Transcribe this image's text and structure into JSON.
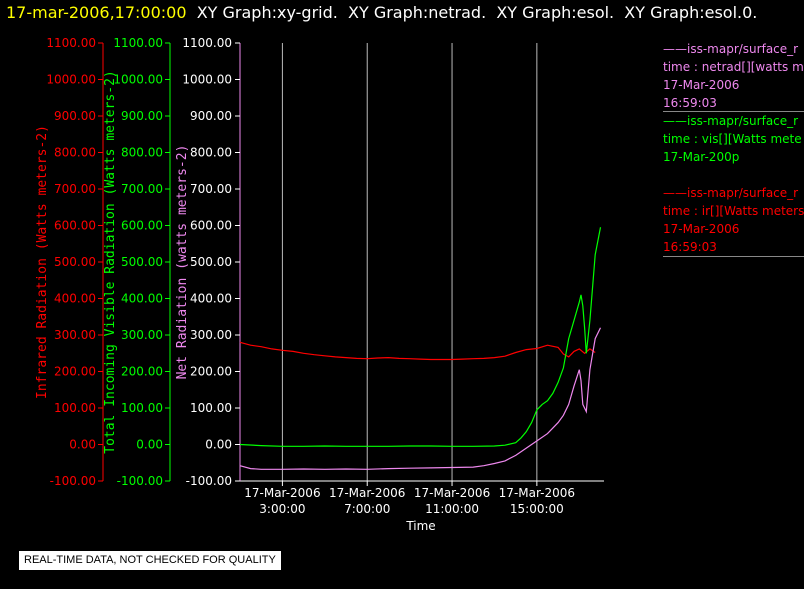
{
  "header": {
    "timestamp": "17-mar-2006,17:00:00",
    "titles": "XY Graph:xy-grid.  XY Graph:netrad.  XY Graph:esol.  XY Graph:esol.0."
  },
  "chart_data": {
    "type": "line",
    "xlabel": "Time",
    "x_ticks": [
      {
        "date": "17-Mar-2006",
        "time": "3:00:00"
      },
      {
        "date": "17-Mar-2006",
        "time": "7:00:00"
      },
      {
        "date": "17-Mar-2006",
        "time": "11:00:00"
      },
      {
        "date": "17-Mar-2006",
        "time": "15:00:00"
      }
    ],
    "y_axes": [
      {
        "label": "Infrared Radiation (Watts meters-2)",
        "color": "#ff0000"
      },
      {
        "label": "Total Incoming Visible Radiation (Watts meters-2)",
        "color": "#00ff00"
      },
      {
        "label": "Net Radiation (watts meters-2)",
        "color": "#ee88ee"
      }
    ],
    "y_ticks": [
      "1100.00",
      "1000.00",
      "900.00",
      "800.00",
      "700.00",
      "600.00",
      "500.00",
      "400.00",
      "300.00",
      "200.00",
      "100.00",
      "0.00",
      "-100.00"
    ],
    "ylim": [
      -100,
      1100
    ],
    "xlim": [
      "17-Mar-2006 01:00",
      "17-Mar-2006 18:10"
    ],
    "grid": true,
    "series": [
      {
        "name": "ir",
        "color": "#ff0000",
        "x": [
          "01:00",
          "01:30",
          "02:00",
          "02:30",
          "03:00",
          "03:30",
          "04:00",
          "04:30",
          "05:00",
          "05:30",
          "06:00",
          "06:30",
          "07:00",
          "07:30",
          "08:00",
          "08:30",
          "09:00",
          "09:30",
          "10:00",
          "10:30",
          "11:00",
          "11:30",
          "12:00",
          "12:30",
          "13:00",
          "13:30",
          "14:00",
          "14:30",
          "15:00",
          "15:30",
          "16:00",
          "16:15",
          "16:30",
          "16:45",
          "17:00",
          "17:15",
          "17:30",
          "17:45"
        ],
        "values": [
          280,
          272,
          268,
          262,
          258,
          255,
          250,
          246,
          243,
          240,
          238,
          236,
          235,
          237,
          238,
          236,
          235,
          234,
          233,
          233,
          233,
          234,
          235,
          236,
          238,
          242,
          252,
          260,
          263,
          272,
          266,
          248,
          240,
          255,
          262,
          250,
          262,
          252
        ]
      },
      {
        "name": "vis",
        "color": "#00ff00",
        "x": [
          "01:00",
          "02:00",
          "03:00",
          "04:00",
          "05:00",
          "06:00",
          "07:00",
          "08:00",
          "09:00",
          "10:00",
          "11:00",
          "12:00",
          "13:00",
          "13:30",
          "14:00",
          "14:15",
          "14:30",
          "14:45",
          "15:00",
          "15:15",
          "15:30",
          "15:45",
          "16:00",
          "16:15",
          "16:30",
          "16:45",
          "17:00",
          "17:05",
          "17:10",
          "17:15",
          "17:20",
          "17:30",
          "17:45",
          "18:00"
        ],
        "values": [
          0,
          -3,
          -5,
          -5,
          -4,
          -5,
          -5,
          -5,
          -4,
          -4,
          -5,
          -5,
          -4,
          -2,
          5,
          18,
          35,
          60,
          95,
          110,
          120,
          140,
          170,
          210,
          290,
          340,
          390,
          410,
          380,
          320,
          250,
          340,
          520,
          595
        ]
      },
      {
        "name": "netrad",
        "color": "#ee88ee",
        "x": [
          "01:00",
          "01:30",
          "02:00",
          "03:00",
          "04:00",
          "05:00",
          "06:00",
          "07:00",
          "08:00",
          "09:00",
          "10:00",
          "11:00",
          "12:00",
          "12:30",
          "13:00",
          "13:30",
          "14:00",
          "14:30",
          "15:00",
          "15:30",
          "16:00",
          "16:15",
          "16:30",
          "16:45",
          "17:00",
          "17:05",
          "17:10",
          "17:20",
          "17:30",
          "17:45",
          "18:00"
        ],
        "values": [
          -58,
          -66,
          -68,
          -68,
          -67,
          -68,
          -67,
          -68,
          -66,
          -65,
          -64,
          -63,
          -62,
          -58,
          -52,
          -45,
          -30,
          -10,
          10,
          30,
          60,
          80,
          110,
          160,
          205,
          175,
          110,
          90,
          205,
          290,
          320
        ]
      }
    ]
  },
  "legend": [
    {
      "line1": "iss-mapr/surface_r",
      "line2": "time : netrad[][watts m",
      "line3": "17-Mar-2006",
      "line4": "16:59:03",
      "color": "#ee88ee"
    },
    {
      "line1": "iss-mapr/surface_r",
      "line2": "time : vis[][Watts mete",
      "line3": "17-Mar-200p",
      "line4": "",
      "color": "#00ff00"
    },
    {
      "line1": "iss-mapr/surface_r",
      "line2": "time : ir[][Watts meters",
      "line3": "17-Mar-2006",
      "line4": "16:59:03",
      "color": "#ff0000"
    }
  ],
  "note": "REAL-TIME DATA, NOT CHECKED FOR QUALITY"
}
